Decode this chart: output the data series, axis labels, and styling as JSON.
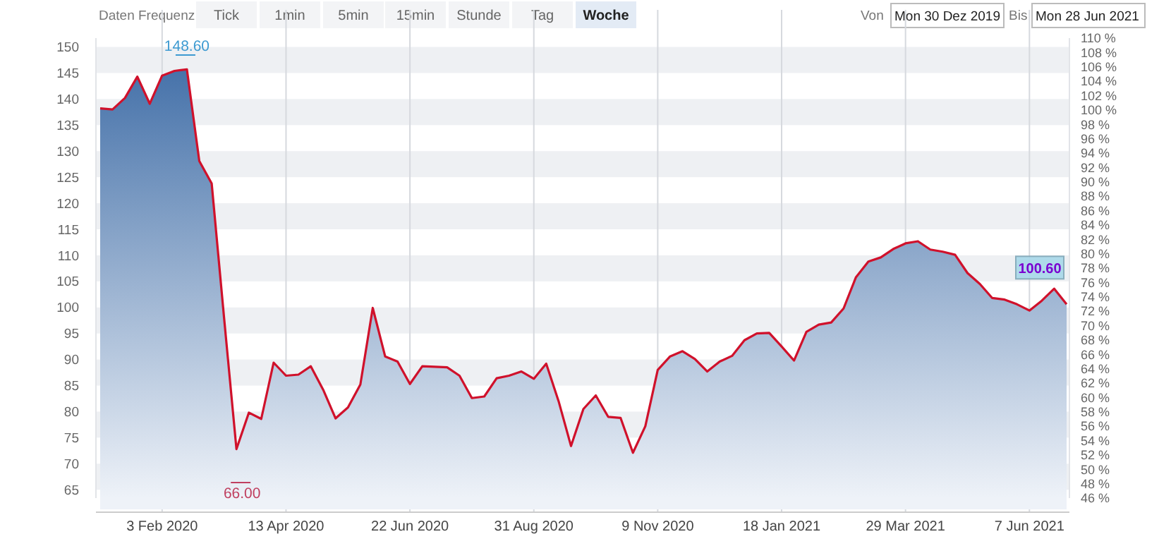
{
  "chart_data": {
    "type": "area",
    "x": [
      "2019-12-30",
      "2020-01-06",
      "2020-01-13",
      "2020-01-20",
      "2020-01-27",
      "2020-02-03",
      "2020-02-10",
      "2020-02-17",
      "2020-02-24",
      "2020-03-02",
      "2020-03-09",
      "2020-03-16",
      "2020-03-23",
      "2020-03-30",
      "2020-04-06",
      "2020-04-13",
      "2020-04-20",
      "2020-04-27",
      "2020-05-04",
      "2020-05-11",
      "2020-05-18",
      "2020-05-25",
      "2020-06-01",
      "2020-06-08",
      "2020-06-15",
      "2020-06-22",
      "2020-06-29",
      "2020-07-06",
      "2020-07-13",
      "2020-07-20",
      "2020-07-27",
      "2020-08-03",
      "2020-08-10",
      "2020-08-17",
      "2020-08-24",
      "2020-08-31",
      "2020-09-07",
      "2020-09-14",
      "2020-09-21",
      "2020-09-28",
      "2020-10-05",
      "2020-10-12",
      "2020-10-19",
      "2020-10-26",
      "2020-11-02",
      "2020-11-09",
      "2020-11-16",
      "2020-11-23",
      "2020-11-30",
      "2020-12-07",
      "2020-12-14",
      "2020-12-21",
      "2020-12-28",
      "2021-01-04",
      "2021-01-11",
      "2021-01-18",
      "2021-01-25",
      "2021-02-01",
      "2021-02-08",
      "2021-02-15",
      "2021-02-22",
      "2021-03-01",
      "2021-03-08",
      "2021-03-15",
      "2021-03-22",
      "2021-03-29",
      "2021-04-05",
      "2021-04-12",
      "2021-04-19",
      "2021-04-26",
      "2021-05-03",
      "2021-05-10",
      "2021-05-17",
      "2021-05-24",
      "2021-05-31",
      "2021-06-07",
      "2021-06-14",
      "2021-06-21",
      "2021-06-28"
    ],
    "series": [
      {
        "color": "#d0112b",
        "values": [
          138.2,
          138.0,
          140.2,
          144.3,
          139.1,
          144.5,
          145.4,
          145.7,
          128.1,
          123.8,
          98,
          72.8,
          79.8,
          78.6,
          89.4,
          86.9,
          87.1,
          88.7,
          84.2,
          78.7,
          80.8,
          85.2,
          99.9,
          90.6,
          89.6,
          85.3,
          88.7,
          88.6,
          88.5,
          86.9,
          82.6,
          82.9,
          86.4,
          86.9,
          87.7,
          86.3,
          89.2,
          82.0,
          73.4,
          80.5,
          83.1,
          79.0,
          78.8,
          72.1,
          77.2,
          88.0,
          90.6,
          91.6,
          90.1,
          87.7,
          89.6,
          90.7,
          93.7,
          95.0,
          95.1,
          92.5,
          89.8,
          95.3,
          96.7,
          97.1,
          99.8,
          105.8,
          108.8,
          109.6,
          111.2,
          112.3,
          112.7,
          111.1,
          110.7,
          110.1,
          106.6,
          104.5,
          101.8,
          101.5,
          100.6,
          99.4,
          101.3,
          103.6,
          100.6
        ]
      }
    ],
    "xlim": [
      "2019-12-30",
      "2021-06-28"
    ],
    "xticks": [
      {
        "value": "2020-02-03",
        "label": "3 Feb 2020"
      },
      {
        "value": "2020-04-13",
        "label": "13 Apr 2020"
      },
      {
        "value": "2020-06-22",
        "label": "22 Jun 2020"
      },
      {
        "value": "2020-08-31",
        "label": "31 Aug 2020"
      },
      {
        "value": "2020-11-09",
        "label": "9 Nov 2020"
      },
      {
        "value": "2021-01-18",
        "label": "18 Jan 2021"
      },
      {
        "value": "2021-03-29",
        "label": "29 Mar 2021"
      },
      {
        "value": "2021-06-07",
        "label": "7 Jun 2021"
      }
    ],
    "ylim": [
      63.4,
      151.7
    ],
    "yticks": [
      65,
      70,
      75,
      80,
      85,
      90,
      95,
      100,
      105,
      110,
      115,
      120,
      125,
      130,
      135,
      140,
      145,
      150
    ],
    "y2lim": [
      46,
      110
    ],
    "y2ticks": [
      {
        "value": 46,
        "label": "46 %"
      },
      {
        "value": 48,
        "label": "48 %"
      },
      {
        "value": 50,
        "label": "50 %"
      },
      {
        "value": 52,
        "label": "52 %"
      },
      {
        "value": 54,
        "label": "54 %"
      },
      {
        "value": 56,
        "label": "56 %"
      },
      {
        "value": 58,
        "label": "58 %"
      },
      {
        "value": 60,
        "label": "60 %"
      },
      {
        "value": 62,
        "label": "62 %"
      },
      {
        "value": 64,
        "label": "64 %"
      },
      {
        "value": 66,
        "label": "66 %"
      },
      {
        "value": 68,
        "label": "68 %"
      },
      {
        "value": 70,
        "label": "70 %"
      },
      {
        "value": 72,
        "label": "72 %"
      },
      {
        "value": 74,
        "label": "74 %"
      },
      {
        "value": 76,
        "label": "76 %"
      },
      {
        "value": 78,
        "label": "78 %"
      },
      {
        "value": 80,
        "label": "80 %"
      },
      {
        "value": 82,
        "label": "82 %"
      },
      {
        "value": 84,
        "label": "84 %"
      },
      {
        "value": 86,
        "label": "86 %"
      },
      {
        "value": 88,
        "label": "88 %"
      },
      {
        "value": 90,
        "label": "90 %"
      },
      {
        "value": 92,
        "label": "92 %"
      },
      {
        "value": 94,
        "label": "94 %"
      },
      {
        "value": 96,
        "label": "96 %"
      },
      {
        "value": 98,
        "label": "98 %"
      },
      {
        "value": 100,
        "label": "100 %"
      },
      {
        "value": 102,
        "label": "102 %"
      },
      {
        "value": 104,
        "label": "104 %"
      },
      {
        "value": 106,
        "label": "106 %"
      },
      {
        "value": 108,
        "label": "108 %"
      },
      {
        "value": 110,
        "label": "110 %"
      }
    ],
    "grid": true,
    "annotations": [
      "Daten Frequenz",
      "Tick",
      "1min",
      "5min",
      "15min",
      "Stunde",
      "Tag",
      "Woche",
      "Von",
      "Mon 30 Dez 2019",
      "Bis",
      "Mon 28 Jun 2021",
      "148.60",
      "66.00",
      "100.60"
    ]
  }
}
